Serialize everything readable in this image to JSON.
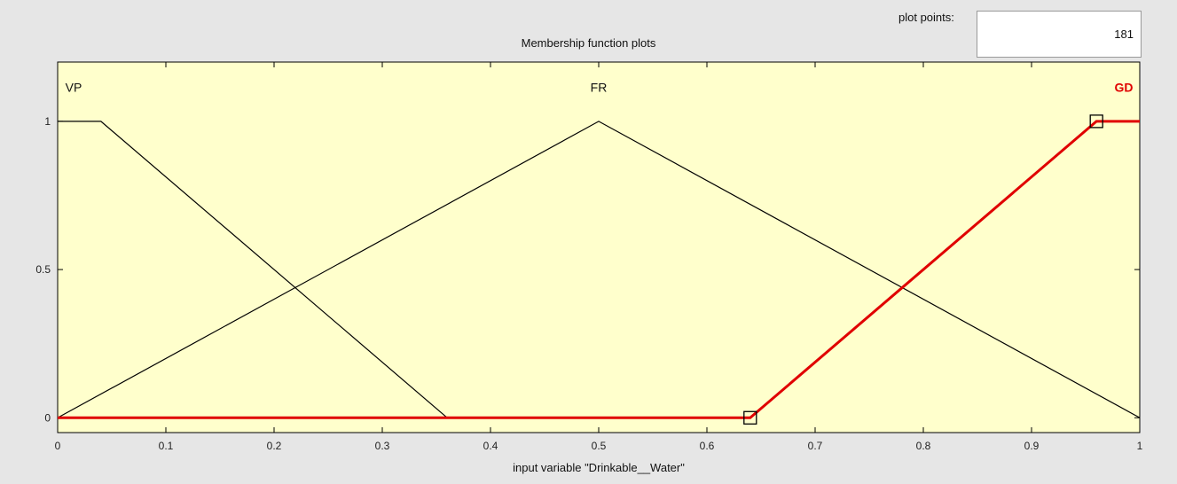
{
  "header": {
    "plot_points_label": "plot points:",
    "plot_points_value": "181",
    "title": "Membership function plots"
  },
  "colors": {
    "background": "#e6e6e6",
    "axes_background": "#ffffcc",
    "mf_default": "#000000",
    "mf_selected": "#e00000"
  },
  "chart_data": {
    "type": "line",
    "title": "Membership function plots",
    "xlabel": "input variable \"Drinkable__Water\"",
    "ylabel": "",
    "xlim": [
      0,
      1
    ],
    "ylim": [
      -0.05,
      1.2
    ],
    "xticks": [
      "0",
      "0.1",
      "0.2",
      "0.3",
      "0.4",
      "0.5",
      "0.6",
      "0.7",
      "0.8",
      "0.9",
      "1"
    ],
    "xtick_values": [
      0,
      0.1,
      0.2,
      0.3,
      0.4,
      0.5,
      0.6,
      0.7,
      0.8,
      0.9,
      1
    ],
    "yticks": [
      "0",
      "0.5",
      "1"
    ],
    "ytick_values": [
      0,
      0.5,
      1
    ],
    "grid": false,
    "series": [
      {
        "name": "VP",
        "shape": "trapezoid",
        "color": "#000000",
        "selected": false,
        "points": [
          [
            0,
            1
          ],
          [
            0.04,
            1
          ],
          [
            0.36,
            0
          ]
        ]
      },
      {
        "name": "FR",
        "shape": "triangle",
        "color": "#000000",
        "selected": false,
        "points": [
          [
            0,
            0
          ],
          [
            0.5,
            1
          ],
          [
            1,
            0
          ]
        ]
      },
      {
        "name": "GD",
        "shape": "trapezoid",
        "color": "#e00000",
        "selected": true,
        "points": [
          [
            0,
            0
          ],
          [
            0.64,
            0
          ],
          [
            0.96,
            1
          ],
          [
            1,
            1
          ]
        ],
        "handles": [
          [
            0.64,
            0
          ],
          [
            0.96,
            1
          ]
        ]
      }
    ]
  }
}
